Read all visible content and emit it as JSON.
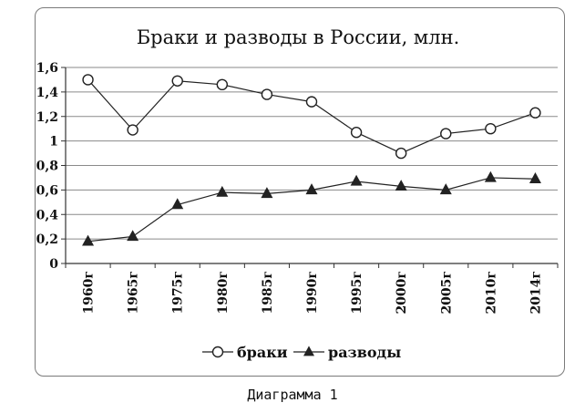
{
  "chart_data": {
    "type": "line",
    "title": "Браки и разводы в России, млн.",
    "categories": [
      "1960г",
      "1965г",
      "1975г",
      "1980г",
      "1985г",
      "1990г",
      "1995г",
      "2000г",
      "2005г",
      "2010г",
      "2014г"
    ],
    "series": [
      {
        "name": "браки",
        "marker": "circle",
        "values": [
          1.5,
          1.09,
          1.49,
          1.46,
          1.38,
          1.32,
          1.07,
          0.9,
          1.06,
          1.1,
          1.23
        ]
      },
      {
        "name": "разводы",
        "marker": "triangle",
        "values": [
          0.18,
          0.22,
          0.48,
          0.58,
          0.57,
          0.6,
          0.67,
          0.63,
          0.6,
          0.7,
          0.69
        ]
      }
    ],
    "y_ticks": [
      "0",
      "0,2",
      "0,4",
      "0,6",
      "0,8",
      "1",
      "1,2",
      "1,4",
      "1,6"
    ],
    "ylim": [
      0,
      1.6
    ],
    "grid": true,
    "legend_position": "bottom",
    "line_color": "#222222"
  },
  "caption": "Диаграмма 1"
}
